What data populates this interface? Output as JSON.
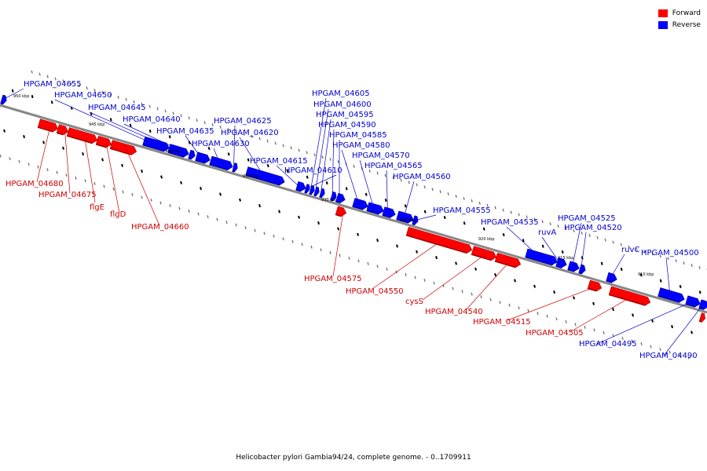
{
  "caption": "Helicobacter pylori Gambia94/24, complete genome. - 0..1709911",
  "legend": [
    {
      "label": "Forward",
      "color": "#ff0000"
    },
    {
      "label": "Reverse",
      "color": "#0000ff"
    }
  ],
  "colors": {
    "forward": "#ff0000",
    "reverse": "#0000ff",
    "forward_label": "#cc0000",
    "reverse_label": "#0000cc",
    "backbone": "#888888"
  },
  "scale": [
    "950 kbp",
    "945 kbp",
    "940 kbp",
    "935 kbp",
    "930 kbp",
    "925 kbp",
    "920 kbp",
    "915 kbp",
    "910 kbp"
  ],
  "genes": {
    "forward": [
      "HPGAM_04680",
      "HPGAM_04675",
      "flgE",
      "flgD",
      "HPGAM_04660",
      "HPGAM_04575",
      "HPGAM_04550",
      "cysS",
      "HPGAM_04540",
      "HPGAM_04515",
      "HPGAM_04505"
    ],
    "reverse": [
      "HPGAM_04655",
      "HPGAM_04650",
      "HPGAM_04645",
      "HPGAM_04640",
      "HPGAM_04635",
      "HPGAM_04630",
      "HPGAM_04625",
      "HPGAM_04620",
      "HPGAM_04615",
      "HPGAM_04610",
      "HPGAM_04605",
      "HPGAM_04600",
      "HPGAM_04595",
      "HPGAM_04590",
      "HPGAM_04585",
      "HPGAM_04580",
      "HPGAM_04570",
      "HPGAM_04565",
      "HPGAM_04560",
      "HPGAM_04555",
      "HPGAM_04535",
      "ruvA",
      "HPGAM_04525",
      "HPGAM_04520",
      "ruvC",
      "HPGAM_04500",
      "HPGAM_04495",
      "HPGAM_04490"
    ]
  }
}
